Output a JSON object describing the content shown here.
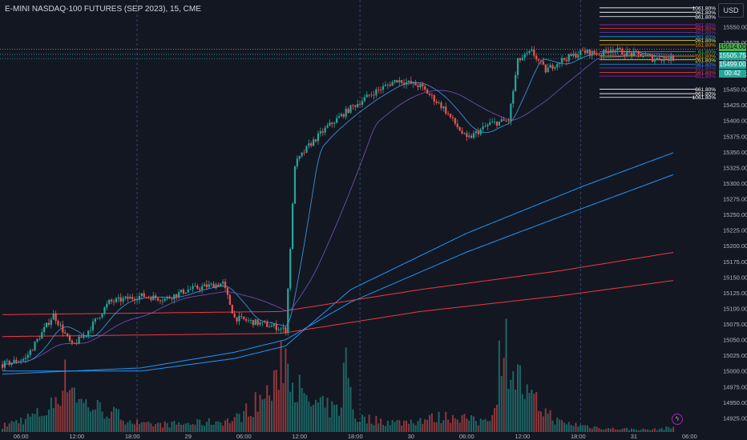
{
  "title": "E-MINI NASDAQ-100 FUTURES (SEP 2023), 15, CME",
  "currency": "USD",
  "price_badges": [
    {
      "label": "15514.00",
      "color": "#4caf50",
      "text": "#000000"
    },
    {
      "label": "15505.75",
      "color": "#26a69a",
      "text": "#ffffff"
    },
    {
      "label": "15499.00",
      "color": "#26a69a",
      "text": "#ffffff"
    },
    {
      "label": "00:42",
      "color": "#26a69a",
      "text": "#ffffff"
    }
  ],
  "flash_icon": "lightning-icon",
  "chart_data": {
    "type": "candlestick",
    "title": "E-MINI NASDAQ-100 FUTURES (SEP 2023), 15, CME",
    "ylim": [
      14900,
      15590
    ],
    "y_ticks": [
      15550,
      15525,
      15500,
      15475,
      15450,
      15425,
      15400,
      15375,
      15350,
      15325,
      15300,
      15275,
      15250,
      15225,
      15200,
      15175,
      15150,
      15125,
      15100,
      15075,
      15050,
      15025,
      15000,
      14975,
      14950,
      14925
    ],
    "x_tick_labels": [
      {
        "label": "06:00",
        "bar": 8
      },
      {
        "label": "12:00",
        "bar": 32
      },
      {
        "label": "18:00",
        "bar": 56
      },
      {
        "label": "29",
        "bar": 80
      },
      {
        "label": "06:00",
        "bar": 104
      },
      {
        "label": "12:00",
        "bar": 128
      },
      {
        "label": "18:00",
        "bar": 152
      },
      {
        "label": "30",
        "bar": 176
      },
      {
        "label": "06:00",
        "bar": 200
      },
      {
        "label": "12:00",
        "bar": 224
      },
      {
        "label": "18:00",
        "bar": 248
      },
      {
        "label": "31",
        "bar": 272
      },
      {
        "label": "06:00",
        "bar": 296
      }
    ],
    "session_breaks_at_bar": [
      58,
      154,
      249
    ],
    "bar_count": 290,
    "price_keyframes": [
      [
        0,
        15010
      ],
      [
        10,
        15020
      ],
      [
        22,
        15090
      ],
      [
        30,
        15040
      ],
      [
        36,
        15060
      ],
      [
        46,
        15110
      ],
      [
        60,
        15120
      ],
      [
        70,
        15115
      ],
      [
        80,
        15130
      ],
      [
        95,
        15140
      ],
      [
        100,
        15085
      ],
      [
        118,
        15070
      ],
      [
        122,
        15065
      ],
      [
        126,
        15330
      ],
      [
        132,
        15360
      ],
      [
        140,
        15390
      ],
      [
        150,
        15420
      ],
      [
        160,
        15445
      ],
      [
        170,
        15465
      ],
      [
        180,
        15455
      ],
      [
        190,
        15420
      ],
      [
        196,
        15390
      ],
      [
        200,
        15370
      ],
      [
        210,
        15395
      ],
      [
        218,
        15400
      ],
      [
        222,
        15495
      ],
      [
        228,
        15510
      ],
      [
        234,
        15480
      ],
      [
        240,
        15495
      ],
      [
        250,
        15510
      ],
      [
        258,
        15506
      ],
      [
        262,
        15515
      ],
      [
        268,
        15508
      ],
      [
        275,
        15505
      ],
      [
        280,
        15499
      ]
    ],
    "volume_keyframes": [
      [
        0,
        5
      ],
      [
        20,
        18
      ],
      [
        28,
        48
      ],
      [
        34,
        25
      ],
      [
        50,
        14
      ],
      [
        60,
        6
      ],
      [
        80,
        7
      ],
      [
        100,
        10
      ],
      [
        118,
        38
      ],
      [
        120,
        70
      ],
      [
        124,
        55
      ],
      [
        130,
        25
      ],
      [
        145,
        18
      ],
      [
        148,
        60
      ],
      [
        152,
        12
      ],
      [
        170,
        8
      ],
      [
        196,
        14
      ],
      [
        205,
        8
      ],
      [
        212,
        18
      ],
      [
        215,
        80
      ],
      [
        220,
        55
      ],
      [
        226,
        30
      ],
      [
        240,
        8
      ],
      [
        260,
        3
      ],
      [
        280,
        2
      ],
      [
        289,
        4
      ]
    ],
    "ma_series": [
      {
        "name": "",
        "color": "#2196f3",
        "keys": [
          [
            0,
            15000
          ],
          [
            60,
            15000
          ],
          [
            100,
            15020
          ],
          [
            122,
            15040
          ],
          [
            150,
            15130
          ],
          [
            200,
            15220
          ],
          [
            250,
            15295
          ],
          [
            290,
            15350
          ]
        ]
      },
      {
        "name": "",
        "color": "#2196f3",
        "keys": [
          [
            0,
            14995
          ],
          [
            60,
            15005
          ],
          [
            100,
            15030
          ],
          [
            122,
            15050
          ],
          [
            150,
            15110
          ],
          [
            200,
            15190
          ],
          [
            250,
            15260
          ],
          [
            290,
            15315
          ]
        ]
      },
      {
        "name": "",
        "color": "#f23645",
        "keys": [
          [
            0,
            15090
          ],
          [
            120,
            15095
          ],
          [
            180,
            15130
          ],
          [
            240,
            15160
          ],
          [
            290,
            15190
          ]
        ]
      },
      {
        "name": "",
        "color": "#f23645",
        "keys": [
          [
            0,
            15055
          ],
          [
            120,
            15060
          ],
          [
            180,
            15095
          ],
          [
            240,
            15120
          ],
          [
            290,
            15145
          ]
        ]
      }
    ],
    "fib_levels": [
      {
        "label": "1061.80%",
        "value": 15580,
        "color": "#ffffff"
      },
      {
        "label": "961.80%",
        "value": 15573,
        "color": "#ffffff"
      },
      {
        "label": "861.80%",
        "value": 15566,
        "color": "#ffffff"
      },
      {
        "label": "661.80%",
        "value": 15553,
        "color": "#9c27b0"
      },
      {
        "label": "561.80%",
        "value": 15547,
        "color": "#f23645"
      },
      {
        "label": "461.80%",
        "value": 15541,
        "color": "#673ab7"
      },
      {
        "label": "361.80%",
        "value": 15534,
        "color": "#2196f3"
      },
      {
        "label": "261.80%",
        "value": 15528,
        "color": "#ffeb3b"
      },
      {
        "label": "161.80%",
        "value": 15521,
        "color": "#ff9800"
      },
      {
        "label": "61.80%",
        "value": 15510,
        "color": "#4caf50"
      },
      {
        "label": "161.80%",
        "value": 15503,
        "color": "#ff9800"
      },
      {
        "label": "261.80%",
        "value": 15497,
        "color": "#ffeb3b"
      },
      {
        "label": "361.80%",
        "value": 15490,
        "color": "#2196f3"
      },
      {
        "label": "461.80%",
        "value": 15484,
        "color": "#673ab7"
      },
      {
        "label": "561.80%",
        "value": 15477,
        "color": "#f23645"
      },
      {
        "label": "661.80%",
        "value": 15471,
        "color": "#9c27b0"
      },
      {
        "label": "861.80%",
        "value": 15450,
        "color": "#ffffff"
      },
      {
        "label": "961.80%",
        "value": 15443,
        "color": "#ffffff"
      },
      {
        "label": "1061.80%",
        "value": 15437,
        "color": "#ffffff"
      }
    ],
    "current_price_lines": [
      15514,
      15505.75,
      15499
    ],
    "colors": {
      "up": "#26a69a",
      "down": "#ef5350",
      "bg": "#131722",
      "grid": "#2a2e39",
      "text": "#b2b5be",
      "session": "#4a7ac7"
    },
    "grid": false,
    "legend": "none"
  }
}
